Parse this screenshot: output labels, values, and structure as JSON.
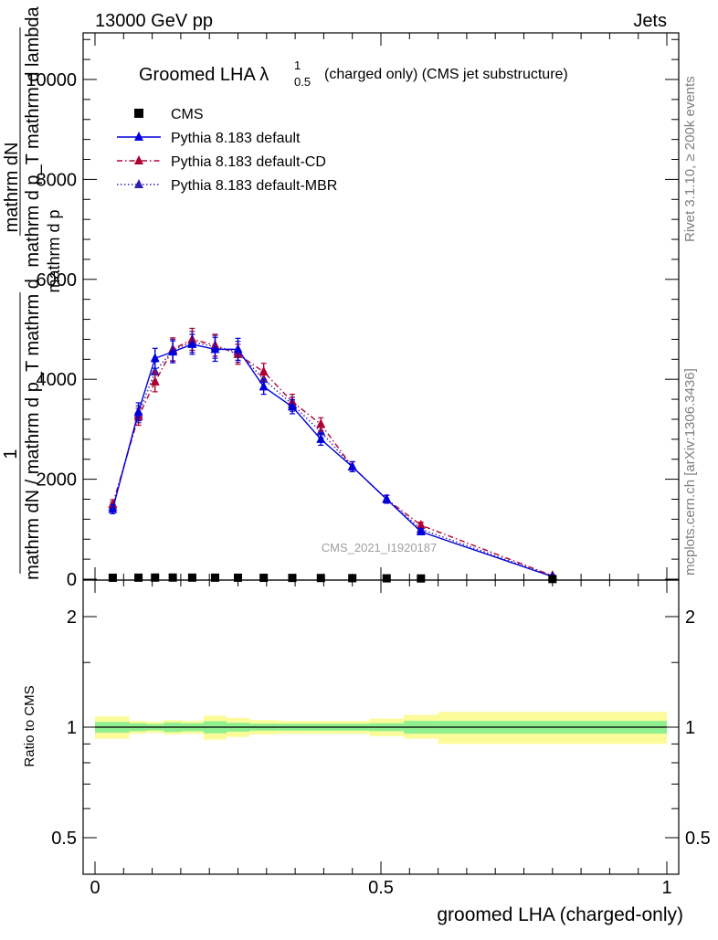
{
  "header": {
    "energy_label": "13000 GeV pp",
    "process_label": "Jets"
  },
  "side_labels": {
    "rivet": "Rivet 3.1.10, ≥ 200k events",
    "mcplots": "mcplots.cern.ch [arXiv:1306.3436]"
  },
  "chart_data": {
    "type": "scatter",
    "title_main": "Groomed LHA λ",
    "title_sup": "1",
    "title_sub": "0.5",
    "title_rest": "(charged only) (CMS jet substructure)",
    "analysis_id": "CMS_2021_I1920187",
    "ylabel_numerator": "1",
    "ylabel_line1": "mathrm dN",
    "ylabel_line2": "mathrm d p_T mathrm d lambda",
    "ylabel_line3": "mathrm dN / mathrm d p_T mathrm d",
    "ylabel_line4": "mathrm d p",
    "ylabel_sub_T": "T",
    "xlabel": "groomed LHA (charged-only)",
    "ratio_ylabel": "Ratio to CMS",
    "xlim": [
      0,
      1
    ],
    "ylim": [
      0,
      11000
    ],
    "ratio_ylim": [
      0.4,
      2.3
    ],
    "y_ticks": [
      0,
      2000,
      4000,
      6000,
      8000,
      10000
    ],
    "y_tick_labels": [
      "0",
      "2000",
      "4000",
      "6000",
      "8000",
      "10000"
    ],
    "x_ticks": [
      0,
      0.5,
      1
    ],
    "x_tick_labels": [
      "0",
      "0.5",
      "1"
    ],
    "ratio_ticks": [
      0.5,
      1,
      2
    ],
    "ratio_tick_labels": [
      "0.5",
      "1",
      "2"
    ],
    "x_bins": [
      0.031,
      0.076,
      0.105,
      0.136,
      0.17,
      0.21,
      0.25,
      0.295,
      0.345,
      0.395,
      0.45,
      0.51,
      0.57,
      0.8
    ],
    "bin_edges": [
      0,
      0.06,
      0.09,
      0.12,
      0.15,
      0.19,
      0.23,
      0.27,
      0.32,
      0.37,
      0.42,
      0.48,
      0.54,
      0.6,
      1.0
    ],
    "series": [
      {
        "name": "CMS",
        "marker": "square",
        "color": "#000000",
        "values": [
          28,
          30,
          32,
          32,
          31,
          30,
          29,
          27,
          25,
          23,
          20,
          17,
          14,
          3
        ],
        "errors": [
          3,
          3,
          3,
          3,
          3,
          3,
          3,
          3,
          3,
          3,
          2,
          2,
          2,
          1
        ]
      },
      {
        "name": "Pythia 8.183 default",
        "marker": "triangle",
        "color": "#0000dd",
        "linestyle": "solid",
        "values": [
          1400,
          3350,
          4420,
          4550,
          4700,
          4600,
          4600,
          3850,
          3450,
          2800,
          2250,
          1600,
          950,
          50
        ],
        "errors": [
          90,
          180,
          200,
          220,
          200,
          240,
          220,
          150,
          140,
          120,
          100,
          80,
          60,
          15
        ]
      },
      {
        "name": "Pythia 8.183 default-CD",
        "marker": "triangle",
        "color": "#b00030",
        "linestyle": "dashdot",
        "values": [
          1500,
          3250,
          3950,
          4600,
          4800,
          4680,
          4500,
          4150,
          3550,
          3100,
          2250,
          1600,
          1080,
          70
        ],
        "errors": [
          90,
          170,
          200,
          230,
          220,
          220,
          200,
          170,
          150,
          130,
          100,
          80,
          60,
          15
        ]
      },
      {
        "name": "Pythia 8.183 default-MBR",
        "marker": "triangle",
        "color": "#3020b0",
        "linestyle": "dotted",
        "values": [
          1450,
          3300,
          4150,
          4580,
          4750,
          4650,
          4550,
          4000,
          3500,
          2950,
          2250,
          1600,
          1000,
          60
        ],
        "errors": [
          90,
          170,
          200,
          220,
          210,
          230,
          210,
          160,
          140,
          120,
          100,
          80,
          60,
          15
        ]
      }
    ],
    "ratio_bands": {
      "inner_lo": [
        0.966,
        0.975,
        0.98,
        0.97,
        0.975,
        0.962,
        0.972,
        0.978,
        0.978,
        0.978,
        0.978,
        0.975,
        0.96,
        0.96
      ],
      "inner_hi": [
        1.034,
        1.025,
        1.02,
        1.03,
        1.025,
        1.038,
        1.028,
        1.022,
        1.022,
        1.022,
        1.022,
        1.025,
        1.04,
        1.04
      ],
      "outer_lo": [
        0.93,
        0.96,
        0.965,
        0.955,
        0.96,
        0.925,
        0.94,
        0.955,
        0.96,
        0.96,
        0.96,
        0.945,
        0.93,
        0.9
      ],
      "outer_hi": [
        1.07,
        1.04,
        1.035,
        1.045,
        1.04,
        1.075,
        1.06,
        1.045,
        1.04,
        1.04,
        1.04,
        1.055,
        1.08,
        1.1
      ]
    },
    "colors": {
      "inner_band": "#90f090",
      "outer_band": "#fbfb9a"
    },
    "legend_position": "top-left"
  }
}
